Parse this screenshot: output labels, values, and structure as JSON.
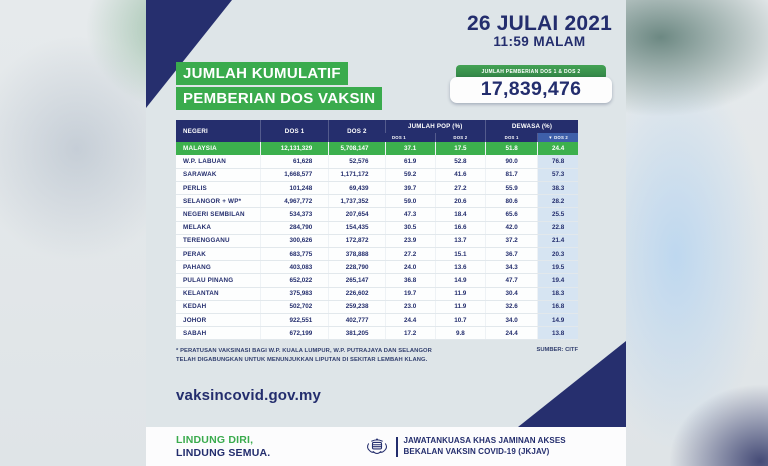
{
  "header": {
    "date": "26 JULAI 2021",
    "time": "11:59 MALAM",
    "title_line1": "JUMLAH KUMULATIF",
    "title_line2": "PEMBERIAN DOS VAKSIN",
    "total_badge": {
      "label": "JUMLAH PEMBERIAN DOS 1 & DOS 2",
      "value": "17,839,476"
    }
  },
  "table": {
    "col_negeri": "NEGERI",
    "col_dos1": "DOS 1",
    "col_dos2": "DOS 2",
    "group_pop": "JUMLAH POP (%)",
    "group_dewasa": "DEWASA (%)",
    "sub_pop_dos1": "DOS 1",
    "sub_pop_dos2": "DOS 2",
    "sub_dew_dos1": "DOS 1",
    "sub_dew_dos2": "▼ DOS 2"
  },
  "footnote": {
    "line1": "* PERATUSAN VAKSINASI BAGI W.P. KUALA LUMPUR, W.P. PUTRAJAYA DAN SELANGOR",
    "line2": "TELAH DIGABUNGKAN UNTUK MENUNJUKKAN LIPUTAN DI SEKITAR LEMBAH KLANG.",
    "source": "SUMBER: CITF"
  },
  "website": "vaksincovid.gov.my",
  "footer": {
    "tagline_line1": "LINDUNG DIRI,",
    "tagline_line2": "LINDUNG SEMUA.",
    "org_line1": "JAWATANKUASA KHAS JAMINAN AKSES",
    "org_line2": "BEKALAN VAKSIN COVID-19 (JKJAV)"
  },
  "colors": {
    "navy": "#252e6d",
    "green": "#3aab4d",
    "highlight_row_green": "#3cb04d",
    "sorted_col_blue": "#d6e4f2",
    "sorted_header_blue": "#3e5fa9",
    "card_bg": "#dee5e8"
  },
  "chart_data": {
    "type": "table",
    "title": "JUMLAH KUMULATIF PEMBERIAN DOS VAKSIN",
    "as_of": "26 JULAI 2021 11:59 MALAM",
    "total_dos1_dos2": "17,839,476",
    "columns": [
      "NEGERI",
      "DOS 1",
      "DOS 2",
      "JUMLAH POP (%) DOS 1",
      "JUMLAH POP (%) DOS 2",
      "DEWASA (%) DOS 1",
      "DEWASA (%) DOS 2"
    ],
    "rows": [
      [
        "MALAYSIA",
        "12,131,329",
        "5,708,147",
        "37.1",
        "17.5",
        "51.8",
        "24.4"
      ],
      [
        "W.P. LABUAN",
        "61,628",
        "52,576",
        "61.9",
        "52.8",
        "90.0",
        "76.8"
      ],
      [
        "SARAWAK",
        "1,668,577",
        "1,171,172",
        "59.2",
        "41.6",
        "81.7",
        "57.3"
      ],
      [
        "PERLIS",
        "101,248",
        "69,439",
        "39.7",
        "27.2",
        "55.9",
        "38.3"
      ],
      [
        "SELANGOR + WP*",
        "4,967,772",
        "1,737,352",
        "59.0",
        "20.6",
        "80.6",
        "28.2"
      ],
      [
        "NEGERI SEMBILAN",
        "534,373",
        "207,654",
        "47.3",
        "18.4",
        "65.6",
        "25.5"
      ],
      [
        "MELAKA",
        "284,790",
        "154,435",
        "30.5",
        "16.6",
        "42.0",
        "22.8"
      ],
      [
        "TERENGGANU",
        "300,626",
        "172,872",
        "23.9",
        "13.7",
        "37.2",
        "21.4"
      ],
      [
        "PERAK",
        "683,775",
        "378,888",
        "27.2",
        "15.1",
        "36.7",
        "20.3"
      ],
      [
        "PAHANG",
        "403,083",
        "228,790",
        "24.0",
        "13.6",
        "34.3",
        "19.5"
      ],
      [
        "PULAU PINANG",
        "652,022",
        "265,147",
        "36.8",
        "14.9",
        "47.7",
        "19.4"
      ],
      [
        "KELANTAN",
        "375,983",
        "226,602",
        "19.7",
        "11.9",
        "30.4",
        "18.3"
      ],
      [
        "KEDAH",
        "502,702",
        "259,238",
        "23.0",
        "11.9",
        "32.6",
        "16.8"
      ],
      [
        "JOHOR",
        "922,551",
        "402,777",
        "24.4",
        "10.7",
        "34.0",
        "14.9"
      ],
      [
        "SABAH",
        "672,199",
        "381,205",
        "17.2",
        "9.8",
        "24.4",
        "13.8"
      ]
    ]
  }
}
